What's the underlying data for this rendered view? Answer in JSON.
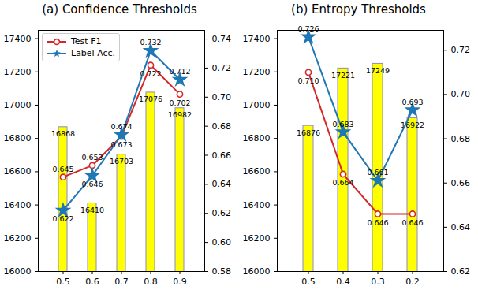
{
  "chart_data": [
    {
      "type": "bar",
      "title": "(a) Confidence Thresholds",
      "categories": [
        "0.5",
        "0.6",
        "0.7",
        "0.8",
        "0.9"
      ],
      "values": [
        16868,
        16410,
        16703,
        17076,
        16982
      ],
      "color": "#ffff00",
      "data_labels": true,
      "ylim": [
        16000,
        17450
      ],
      "yticks": [
        16000,
        16200,
        16400,
        16600,
        16800,
        17000,
        17200,
        17400
      ],
      "y2lim": [
        0.58,
        0.746
      ],
      "y2ticks": [
        0.58,
        {
          "value": 0.6,
          "label": "0.60"
        },
        0.62,
        0.64,
        0.66,
        0.68,
        {
          "value": 0.7,
          "label": "0.70"
        },
        0.72,
        0.74
      ],
      "legend": "upper left",
      "series": [
        {
          "name": "Test F1",
          "type": "line",
          "axis": "y2",
          "color": "#d62728",
          "marker": "circle",
          "values": [
            0.645,
            0.653,
            0.673,
            0.722,
            0.702
          ],
          "value_labels": [
            "0.645",
            "0.653",
            "0.673",
            "0.722",
            "0.702"
          ]
        },
        {
          "name": "Label Acc.",
          "type": "line",
          "axis": "y2",
          "color": "#1f77b4",
          "marker": "star",
          "values": [
            0.622,
            0.646,
            0.674,
            0.732,
            0.712
          ],
          "value_labels": [
            "0.622",
            "0.646",
            "0.674",
            "0.732",
            "0.712"
          ]
        }
      ]
    },
    {
      "type": "bar",
      "title": "(b) Entropy Thresholds",
      "categories": [
        "0.5",
        "0.4",
        "0.3",
        "0.2"
      ],
      "values": [
        16876,
        17221,
        17249,
        16922
      ],
      "color": "#ffff00",
      "data_labels": true,
      "ylim": [
        16000,
        17450
      ],
      "yticks": [
        16000,
        16200,
        16400,
        16600,
        16800,
        17000,
        17200,
        17400
      ],
      "y2lim": [
        0.62,
        0.729
      ],
      "y2ticks": [
        0.62,
        0.64,
        0.66,
        0.68,
        {
          "value": 0.7,
          "label": "0.70"
        },
        0.72
      ],
      "series": [
        {
          "type": "line",
          "axis": "y2",
          "color": "#d62728",
          "marker": "circle",
          "values": [
            0.71,
            0.664,
            0.646,
            0.646
          ],
          "value_labels": [
            "0.710",
            "0.664",
            "0.646",
            "0.646"
          ]
        },
        {
          "type": "line",
          "axis": "y2",
          "color": "#1f77b4",
          "marker": "star",
          "values": [
            0.726,
            0.683,
            0.661,
            0.693
          ],
          "value_labels": [
            "0.726",
            "0.683",
            "0.661",
            "0.693"
          ]
        }
      ]
    }
  ]
}
